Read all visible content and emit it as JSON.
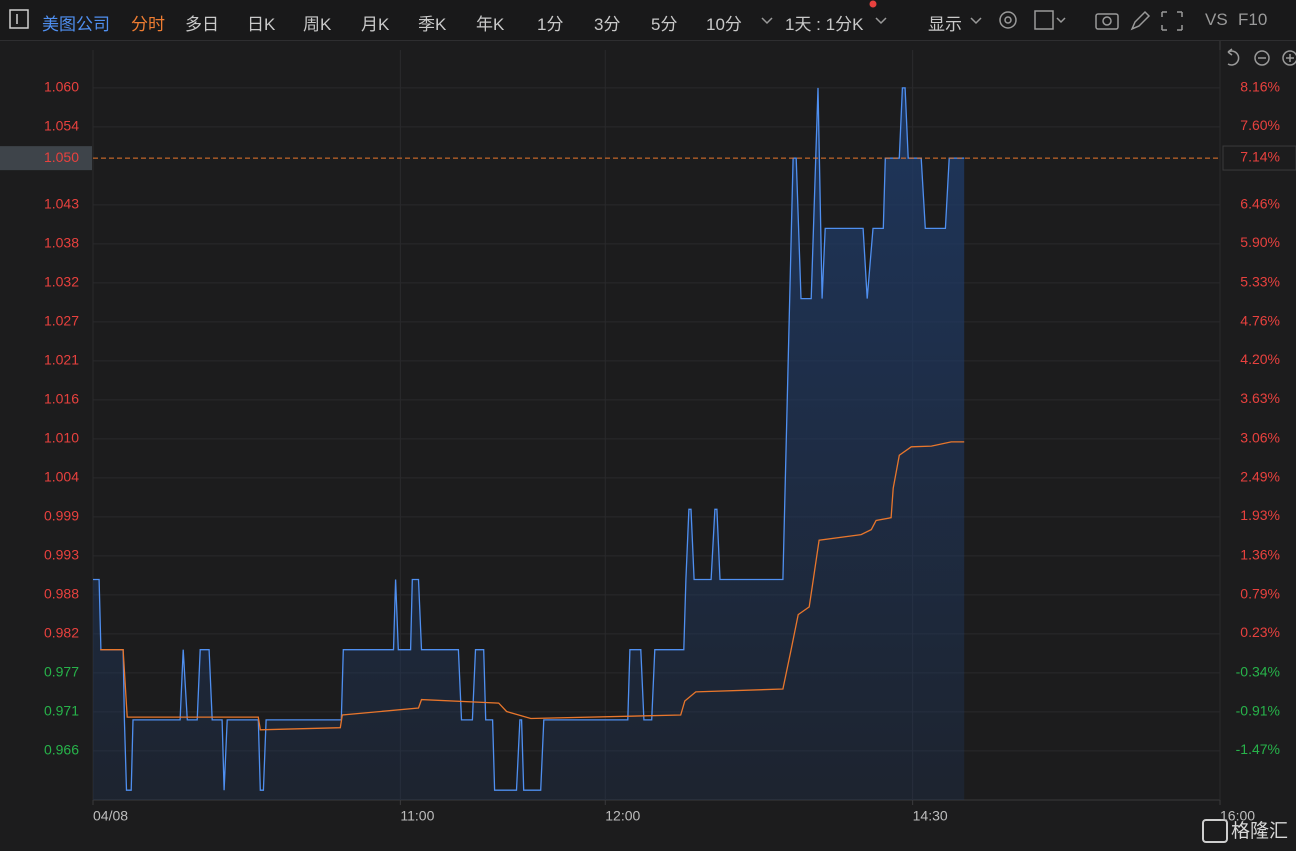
{
  "toolbar": {
    "stock": "美图公司",
    "periods": [
      "分时",
      "多日",
      "日K",
      "周K",
      "月K",
      "季K",
      "年K",
      "1分",
      "3分",
      "5分",
      "10分"
    ],
    "interval": "1天 : 1分K",
    "display": "显示",
    "vs": "VS",
    "f10": "F10"
  },
  "watermark": "格隆汇",
  "chart_data": {
    "type": "line",
    "xlim": [
      0,
      330
    ],
    "xticks": [
      {
        "value": 0,
        "label": "04/08"
      },
      {
        "value": 90,
        "label": "11:00"
      },
      {
        "value": 150,
        "label": "12:00"
      },
      {
        "value": 240,
        "label": "14:30"
      },
      {
        "value": 330,
        "label": "16:00"
      }
    ],
    "ylim": [
      0.9586,
      1.0654
    ],
    "yticks": [
      {
        "value": 1.06,
        "label": "1.060"
      },
      {
        "value": 1.05445,
        "label": "1.054"
      },
      {
        "value": 1.04334,
        "label": "1.043"
      },
      {
        "value": 1.03779,
        "label": "1.038"
      },
      {
        "value": 1.03224,
        "label": "1.032"
      },
      {
        "value": 1.02668,
        "label": "1.027"
      },
      {
        "value": 1.02113,
        "label": "1.021"
      },
      {
        "value": 1.01558,
        "label": "1.016"
      },
      {
        "value": 1.01002,
        "label": "1.010"
      },
      {
        "value": 1.00447,
        "label": "1.004"
      },
      {
        "value": 0.99892,
        "label": "0.999"
      },
      {
        "value": 0.99336,
        "label": "0.993"
      },
      {
        "value": 0.98781,
        "label": "0.988"
      },
      {
        "value": 0.98226,
        "label": "0.982"
      },
      {
        "value": 0.9767,
        "label": "0.977"
      },
      {
        "value": 0.97115,
        "label": "0.971"
      },
      {
        "value": 0.9656,
        "label": "0.966"
      }
    ],
    "y2lim": [
      -2.19,
      8.71
    ],
    "y2ticks": [
      {
        "value": 8.16,
        "label": "8.16%"
      },
      {
        "value": 7.6,
        "label": "7.60%"
      },
      {
        "value": 6.46,
        "label": "6.46%"
      },
      {
        "value": 5.9,
        "label": "5.90%"
      },
      {
        "value": 5.33,
        "label": "5.33%"
      },
      {
        "value": 4.76,
        "label": "4.76%"
      },
      {
        "value": 4.2,
        "label": "4.20%"
      },
      {
        "value": 3.63,
        "label": "3.63%"
      },
      {
        "value": 3.06,
        "label": "3.06%"
      },
      {
        "value": 2.49,
        "label": "2.49%"
      },
      {
        "value": 1.93,
        "label": "1.93%"
      },
      {
        "value": 1.36,
        "label": "1.36%"
      },
      {
        "value": 0.79,
        "label": "0.79%"
      },
      {
        "value": 0.23,
        "label": "0.23%"
      },
      {
        "value": -0.34,
        "label": "-0.34%"
      },
      {
        "value": -0.91,
        "label": "-0.91%"
      },
      {
        "value": -1.47,
        "label": "-1.47%"
      }
    ],
    "last_price": {
      "value": 1.05,
      "label": "1.050"
    },
    "last_change": {
      "value": 7.14,
      "label": "7.14%"
    },
    "up_color": "#e8413e",
    "down_color": "#27b34a",
    "grid": true,
    "series": [
      {
        "color": "#4f8ff0",
        "area": true,
        "x": [
          0,
          1.8,
          2.3,
          8.8,
          9.2,
          9.8,
          11.2,
          11.7,
          25.5,
          26.4,
          27.6,
          30.5,
          31.4,
          34,
          34.9,
          37.8,
          38.4,
          39.3,
          48.4,
          49,
          49.9,
          50.7,
          72.7,
          73.3,
          88,
          88.6,
          89.4,
          93,
          93.5,
          95.3,
          96.2,
          107,
          107.9,
          111.1,
          112,
          114.4,
          115,
          117,
          117.6,
          124,
          125,
          125.5,
          126.1,
          131.1,
          132,
          156.6,
          157.2,
          160.4,
          161.3,
          163.6,
          164.5,
          173,
          173.6,
          174.5,
          175.1,
          176,
          181,
          182.1,
          182.7,
          183.6,
          202,
          205,
          205.9,
          207.3,
          210.3,
          212.3,
          213.5,
          214.4,
          225.5,
          226.7,
          228.4,
          231.4,
          232,
          236.1,
          237,
          237.8,
          238.7,
          242.5,
          243.7,
          249.6,
          250.7,
          255.1
        ],
        "values": [
          0.99,
          0.99,
          0.98,
          0.98,
          0.97,
          0.96,
          0.96,
          0.97,
          0.97,
          0.98,
          0.97,
          0.97,
          0.98,
          0.98,
          0.97,
          0.97,
          0.96,
          0.97,
          0.97,
          0.96,
          0.96,
          0.97,
          0.97,
          0.98,
          0.98,
          0.99,
          0.98,
          0.98,
          0.99,
          0.99,
          0.98,
          0.98,
          0.97,
          0.97,
          0.98,
          0.98,
          0.97,
          0.97,
          0.96,
          0.96,
          0.97,
          0.97,
          0.96,
          0.96,
          0.97,
          0.97,
          0.98,
          0.98,
          0.97,
          0.97,
          0.98,
          0.98,
          0.99,
          1.0,
          1.0,
          0.99,
          0.99,
          1.0,
          1.0,
          0.99,
          0.99,
          1.05,
          1.05,
          1.03,
          1.03,
          1.06,
          1.03,
          1.04,
          1.04,
          1.03,
          1.04,
          1.04,
          1.05,
          1.05,
          1.06,
          1.06,
          1.05,
          1.05,
          1.04,
          1.04,
          1.05,
          1.05
        ]
      },
      {
        "color": "#e8762c",
        "area": false,
        "x": [
          2.1,
          8.8,
          10,
          48.4,
          49,
          72.4,
          73,
          95.3,
          96.2,
          118.8,
          121.1,
          128.2,
          172.1,
          173.3,
          176.5,
          202,
          204.4,
          206.5,
          209.7,
          210.9,
          212.6,
          224.9,
          227.9,
          229.3,
          233.7,
          234.3,
          236.1,
          239.6,
          245.5,
          251.3,
          255.1
        ],
        "values": [
          0.98,
          0.98,
          0.9704,
          0.9704,
          0.9686,
          0.9689,
          0.9707,
          0.9717,
          0.9729,
          0.9724,
          0.9712,
          0.9702,
          0.9707,
          0.9727,
          0.974,
          0.9744,
          0.98,
          0.985,
          0.9861,
          0.99,
          0.9956,
          0.9964,
          0.9971,
          0.9984,
          0.9988,
          1.003,
          1.0077,
          1.0089,
          1.009,
          1.0096,
          1.0096
        ]
      }
    ]
  }
}
